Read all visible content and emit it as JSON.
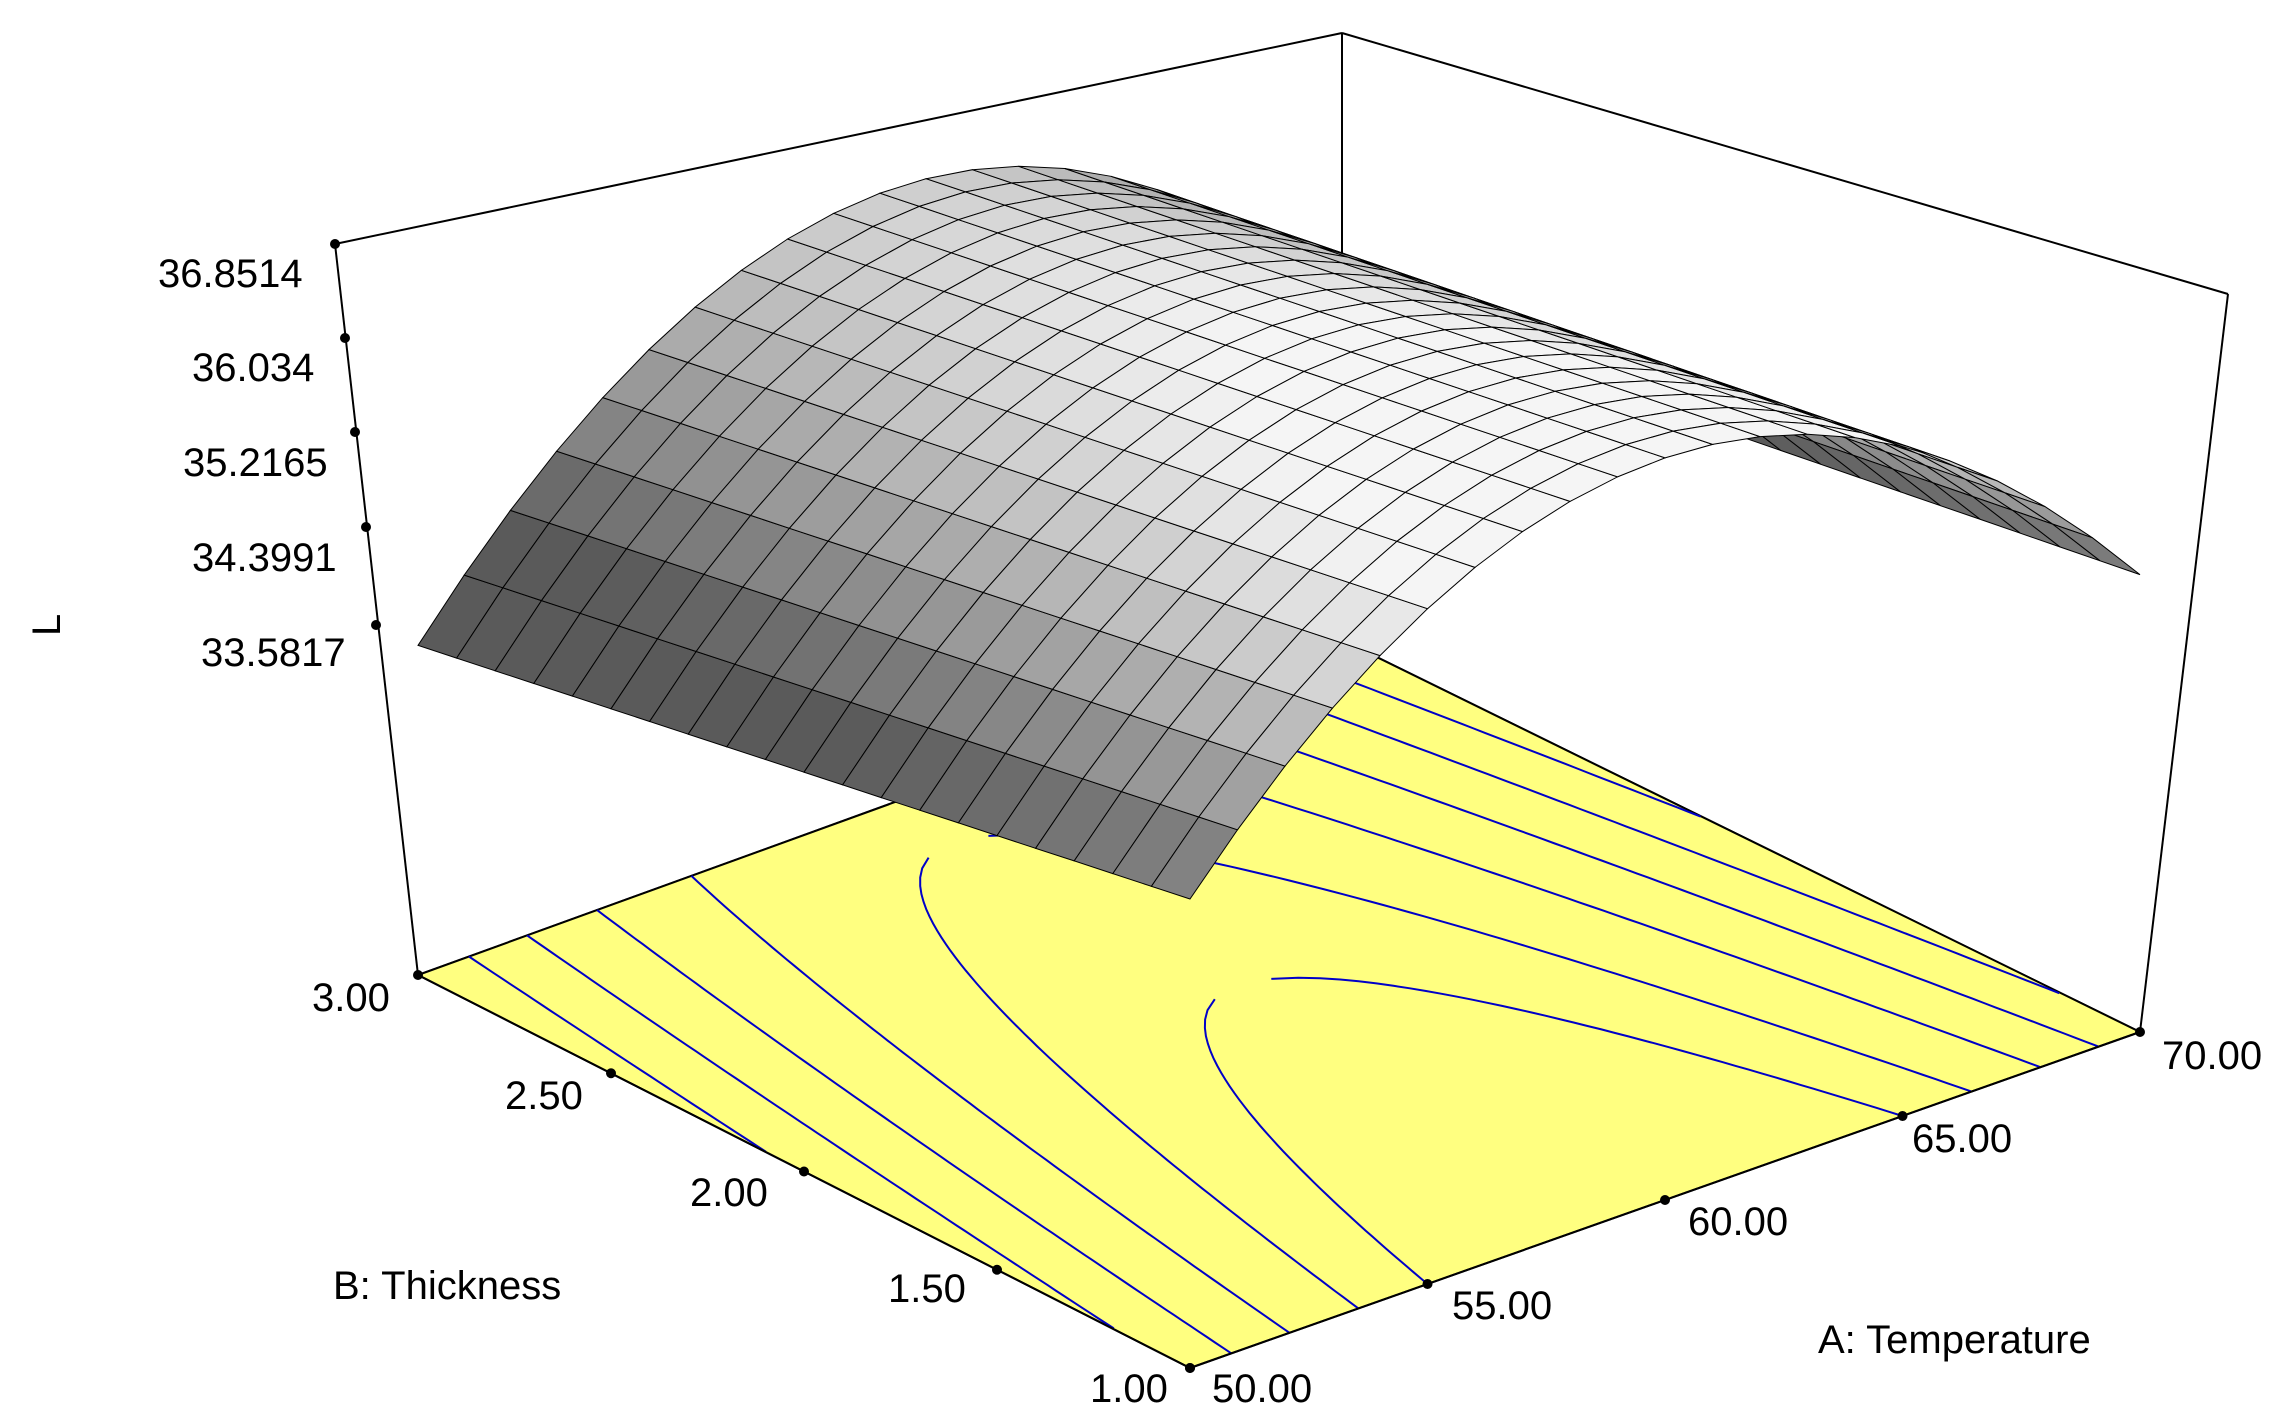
{
  "chart_data": {
    "type": "surface3d",
    "title": "",
    "xlabel": "A: Temperature",
    "ylabel": "B: Thickness",
    "zlabel": "L",
    "x_ticks": [
      "50.00",
      "55.00",
      "60.00",
      "65.00",
      "70.00"
    ],
    "y_ticks": [
      "1.00",
      "1.50",
      "2.00",
      "2.50",
      "3.00"
    ],
    "z_ticks": [
      "33.5817",
      "34.3991",
      "35.2165",
      "36.034",
      "36.8514"
    ],
    "xlim": [
      50,
      70
    ],
    "ylim": [
      1,
      3
    ],
    "zlim": [
      33.5817,
      36.8514
    ],
    "surface_color_low": "#5a5a5a",
    "surface_color_high": "#f5f5f5",
    "floor_color": "#ffff80",
    "contour_color": "#0000c8",
    "grid": "on",
    "legend": "none"
  }
}
